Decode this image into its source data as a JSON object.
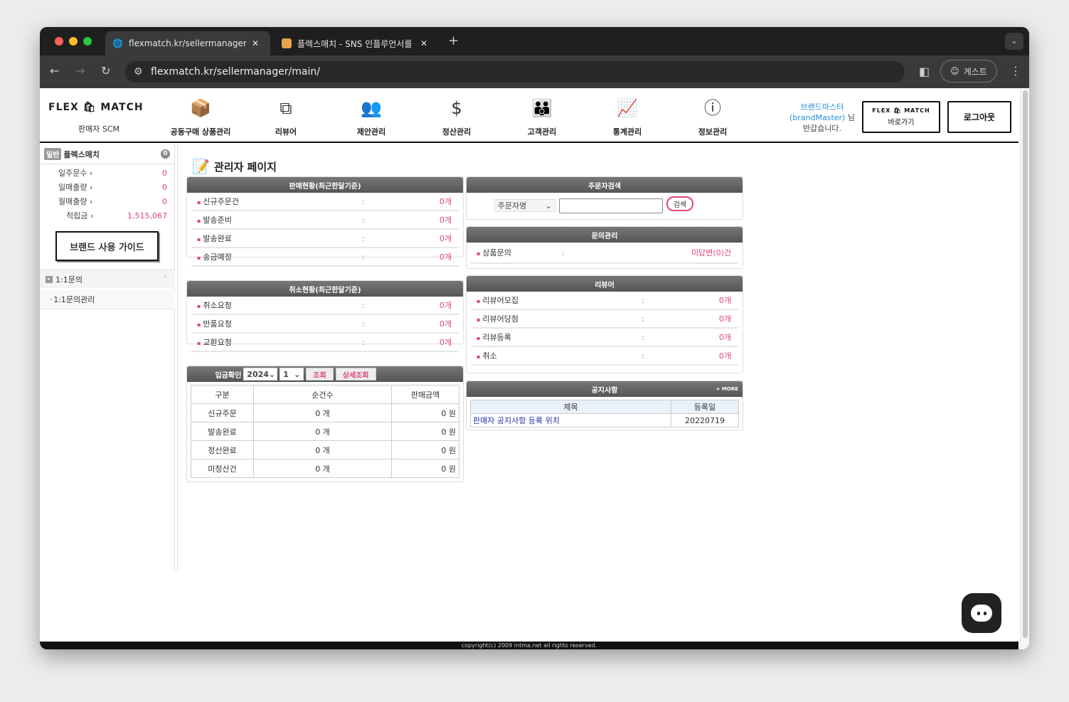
{
  "browser": {
    "tabs": [
      {
        "title": "flexmatch.kr/sellermanager/main/",
        "active": true
      },
      {
        "title": "플렉스매치 - SNS 인플루언서를 위한",
        "active": false
      }
    ],
    "url": "flexmatch.kr/sellermanager/main/",
    "profile": "게스트"
  },
  "header": {
    "logo_left": "FLEX",
    "logo_right": "MATCH",
    "logo_sub": "판매자 SCM",
    "nav": [
      {
        "label": "공동구매 상품관리",
        "icon": "box-icon"
      },
      {
        "label": "리뷰어",
        "icon": "network-box-icon"
      },
      {
        "label": "제안관리",
        "icon": "group-hand-icon"
      },
      {
        "label": "정산관리",
        "icon": "money-hand-icon"
      },
      {
        "label": "고객관리",
        "icon": "users-icon"
      },
      {
        "label": "통계관리",
        "icon": "chart-icon"
      },
      {
        "label": "정보관리",
        "icon": "info-icon"
      }
    ],
    "welcome_name": "브랜드마스터",
    "welcome_id": "(brandMaster)",
    "welcome_suffix": "님",
    "welcome_msg": "반갑습니다.",
    "shortcut_label": "바로가기",
    "logout_label": "로그아웃"
  },
  "sidebar": {
    "badge": "일반",
    "name": "플렉스매치",
    "count": "0",
    "stats": [
      {
        "label": "일주문수",
        "value": "0"
      },
      {
        "label": "일매출량",
        "value": "0"
      },
      {
        "label": "월매출량",
        "value": "0"
      },
      {
        "label": "적립금",
        "value": "1,515,067"
      }
    ],
    "guide_button": "브랜드 사용 가이드",
    "section": "1:1문의",
    "section_item": "1:1문의관리"
  },
  "main": {
    "title": "관리자 페이지",
    "sales": {
      "title": "판매현황(최근한달기준)",
      "rows": [
        {
          "label": "신규주문건",
          "value": "0개"
        },
        {
          "label": "발송준비",
          "value": "0개"
        },
        {
          "label": "발송완료",
          "value": "0개"
        },
        {
          "label": "송금예정",
          "value": "0개"
        }
      ]
    },
    "cancel": {
      "title": "취소현황(최근한달기준)",
      "rows": [
        {
          "label": "취소요청",
          "value": "0개"
        },
        {
          "label": "반품요청",
          "value": "0개"
        },
        {
          "label": "교환요청",
          "value": "0개"
        }
      ]
    },
    "deposit": {
      "title": "입금확인",
      "year": "2024",
      "month": "1",
      "query": "조회",
      "detail": "상세조회",
      "headers": [
        "구분",
        "순건수",
        "판매금액"
      ],
      "rows": [
        [
          "신규주문",
          "0 개",
          "0 원"
        ],
        [
          "발송완료",
          "0 개",
          "0 원"
        ],
        [
          "정산완료",
          "0 개",
          "0 원"
        ],
        [
          "미정산건",
          "0 개",
          "0 원"
        ]
      ]
    },
    "search": {
      "title": "주문자검색",
      "select": "주문자명",
      "input": "",
      "button": "검색"
    },
    "inquiry": {
      "title": "문의관리",
      "rows": [
        {
          "label": "상품문의",
          "value": "미답변(0)건"
        }
      ]
    },
    "reviewer": {
      "title": "리뷰어",
      "rows": [
        {
          "label": "리뷰어모집",
          "value": "0개"
        },
        {
          "label": "리뷰어당첨",
          "value": "0개"
        },
        {
          "label": "리뷰등록",
          "value": "0개"
        },
        {
          "label": "취소",
          "value": "0개"
        }
      ]
    },
    "notice": {
      "title": "공지사항",
      "more": "+ MORE",
      "headers": [
        "제목",
        "등록일"
      ],
      "rows": [
        [
          "판매자 공지사항 등록 위치",
          "20220719"
        ]
      ]
    }
  },
  "footer": "copyright(c) 2009 intma.net all rights reserved."
}
